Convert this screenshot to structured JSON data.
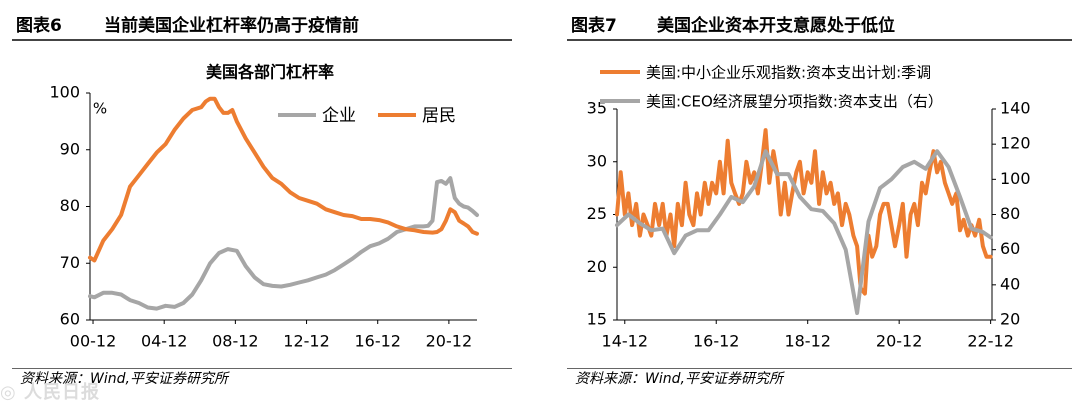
{
  "watermark": "◎ 人民日报",
  "chart_data": [
    {
      "type": "line",
      "figure_no": "图表6",
      "figure_title": "当前美国企业杠杆率仍高于疫情前",
      "title": "美国各部门杠杆率",
      "unit_label": "%",
      "source": "资料来源：Wind,平安证券研究所",
      "ylim": [
        60,
        100
      ],
      "yticks": [
        60,
        70,
        80,
        90,
        100
      ],
      "xlim": [
        2000.75,
        2022.5
      ],
      "xticks": [
        {
          "label": "00-12",
          "value": 2000.92
        },
        {
          "label": "04-12",
          "value": 2004.92
        },
        {
          "label": "08-12",
          "value": 2008.92
        },
        {
          "label": "12-12",
          "value": 2012.92
        },
        {
          "label": "16-12",
          "value": 2016.92
        },
        {
          "label": "20-12",
          "value": 2020.92
        }
      ],
      "legend_position": "top-right",
      "series": [
        {
          "name": "企业",
          "color": "#a6a6a6",
          "x": [
            2000.75,
            2001.0,
            2001.5,
            2002.0,
            2002.5,
            2003.0,
            2003.5,
            2004.0,
            2004.5,
            2005.0,
            2005.5,
            2006.0,
            2006.5,
            2007.0,
            2007.5,
            2008.0,
            2008.5,
            2009.0,
            2009.5,
            2010.0,
            2010.5,
            2011.0,
            2011.5,
            2012.0,
            2012.5,
            2013.0,
            2013.5,
            2014.0,
            2014.5,
            2015.0,
            2015.5,
            2016.0,
            2016.5,
            2017.0,
            2017.5,
            2018.0,
            2018.5,
            2019.0,
            2019.5,
            2019.75,
            2020.0,
            2020.25,
            2020.5,
            2020.75,
            2021.0,
            2021.25,
            2021.5,
            2021.75,
            2022.0,
            2022.25,
            2022.5
          ],
          "y": [
            64.2,
            64.0,
            64.8,
            64.8,
            64.5,
            63.5,
            63.0,
            62.2,
            62.0,
            62.5,
            62.3,
            63.0,
            64.5,
            67.0,
            70.0,
            71.8,
            72.5,
            72.2,
            69.5,
            67.5,
            66.3,
            66.0,
            65.9,
            66.2,
            66.6,
            67.0,
            67.5,
            68.0,
            68.8,
            69.8,
            70.8,
            72.0,
            73.0,
            73.5,
            74.3,
            75.5,
            76.0,
            76.5,
            76.5,
            76.6,
            77.5,
            84.3,
            84.5,
            84.0,
            85.0,
            81.5,
            80.5,
            80.0,
            79.8,
            79.2,
            78.5
          ]
        },
        {
          "name": "居民",
          "color": "#ed7d31",
          "x": [
            2000.75,
            2001.0,
            2001.5,
            2002.0,
            2002.5,
            2003.0,
            2003.5,
            2004.0,
            2004.5,
            2005.0,
            2005.5,
            2006.0,
            2006.5,
            2007.0,
            2007.25,
            2007.5,
            2007.75,
            2008.0,
            2008.25,
            2008.5,
            2008.75,
            2009.0,
            2009.5,
            2010.0,
            2010.5,
            2011.0,
            2011.5,
            2012.0,
            2012.5,
            2013.0,
            2013.5,
            2014.0,
            2014.5,
            2015.0,
            2015.5,
            2016.0,
            2016.5,
            2017.0,
            2017.5,
            2018.0,
            2018.5,
            2019.0,
            2019.5,
            2020.0,
            2020.25,
            2020.5,
            2020.75,
            2021.0,
            2021.25,
            2021.5,
            2021.75,
            2022.0,
            2022.25,
            2022.5
          ],
          "y": [
            71.0,
            70.5,
            74.0,
            76.0,
            78.5,
            83.5,
            85.5,
            87.5,
            89.5,
            91.0,
            93.5,
            95.5,
            97.0,
            97.5,
            98.5,
            99.0,
            99.0,
            97.5,
            96.5,
            96.5,
            97.0,
            95.0,
            92.0,
            89.5,
            87.0,
            85.0,
            84.0,
            82.5,
            81.5,
            81.0,
            80.5,
            79.5,
            79.0,
            78.5,
            78.3,
            77.8,
            77.8,
            77.6,
            77.2,
            76.5,
            76.0,
            75.8,
            75.5,
            75.4,
            75.5,
            76.0,
            77.5,
            79.5,
            79.0,
            77.5,
            77.0,
            76.5,
            75.5,
            75.2
          ]
        }
      ]
    },
    {
      "type": "line",
      "figure_no": "图表7",
      "figure_title": "美国企业资本开支意愿处于低位",
      "source": "资料来源：Wind,平安证券研究所",
      "ylim": [
        15,
        35
      ],
      "yticks": [
        15,
        20,
        25,
        30,
        35
      ],
      "ylim_right": [
        20,
        140
      ],
      "yticks_right": [
        20,
        40,
        60,
        80,
        100,
        120,
        140
      ],
      "xlim": [
        2014.75,
        2022.95
      ],
      "xticks": [
        {
          "label": "14-12",
          "value": 2014.92
        },
        {
          "label": "16-12",
          "value": 2016.92
        },
        {
          "label": "18-12",
          "value": 2018.92
        },
        {
          "label": "20-12",
          "value": 2020.92
        },
        {
          "label": "22-12",
          "value": 2022.92
        }
      ],
      "legend_position": "top",
      "series": [
        {
          "name": "美国:中小企业乐观指数:资本支出计划:季调",
          "axis": "left",
          "color": "#ed7d31",
          "x": [
            2014.75,
            2014.83,
            2014.92,
            2015.0,
            2015.08,
            2015.17,
            2015.25,
            2015.33,
            2015.42,
            2015.5,
            2015.58,
            2015.67,
            2015.75,
            2015.83,
            2015.92,
            2016.0,
            2016.08,
            2016.17,
            2016.25,
            2016.33,
            2016.42,
            2016.5,
            2016.58,
            2016.67,
            2016.75,
            2016.83,
            2016.92,
            2017.0,
            2017.08,
            2017.17,
            2017.25,
            2017.33,
            2017.42,
            2017.5,
            2017.58,
            2017.67,
            2017.75,
            2017.83,
            2017.92,
            2018.0,
            2018.08,
            2018.17,
            2018.25,
            2018.33,
            2018.42,
            2018.5,
            2018.58,
            2018.67,
            2018.75,
            2018.83,
            2018.92,
            2019.0,
            2019.08,
            2019.17,
            2019.25,
            2019.33,
            2019.42,
            2019.5,
            2019.58,
            2019.67,
            2019.75,
            2019.83,
            2019.92,
            2020.0,
            2020.08,
            2020.17,
            2020.25,
            2020.33,
            2020.42,
            2020.5,
            2020.58,
            2020.67,
            2020.75,
            2020.83,
            2020.92,
            2021.0,
            2021.08,
            2021.17,
            2021.25,
            2021.33,
            2021.42,
            2021.5,
            2021.58,
            2021.67,
            2021.75,
            2021.83,
            2021.92,
            2022.0,
            2022.08,
            2022.17,
            2022.25,
            2022.33,
            2022.42,
            2022.5,
            2022.58,
            2022.67,
            2022.75,
            2022.83,
            2022.92
          ],
          "y": [
            25.0,
            29.0,
            25.0,
            27.0,
            24.0,
            26.0,
            23.0,
            25.0,
            24.0,
            23.0,
            26.0,
            24.0,
            26.0,
            23.0,
            25.0,
            22.0,
            26.0,
            24.0,
            28.0,
            25.0,
            24.0,
            27.0,
            25.0,
            28.0,
            26.0,
            28.0,
            27.0,
            30.0,
            27.0,
            32.0,
            28.0,
            27.0,
            26.0,
            27.0,
            30.0,
            28.0,
            29.0,
            27.0,
            30.0,
            33.0,
            28.0,
            31.0,
            29.0,
            25.0,
            28.0,
            25.0,
            27.0,
            29.0,
            30.0,
            27.0,
            29.0,
            28.0,
            31.0,
            26.0,
            29.0,
            27.0,
            28.0,
            26.0,
            27.0,
            24.0,
            26.0,
            25.0,
            23.0,
            22.0,
            18.0,
            17.5,
            23.0,
            21.0,
            22.0,
            25.0,
            26.0,
            26.0,
            24.0,
            22.0,
            24.0,
            26.0,
            21.0,
            25.0,
            26.0,
            24.0,
            28.0,
            27.0,
            29.0,
            31.0,
            29.0,
            30.0,
            28.0,
            27.0,
            26.0,
            27.0,
            23.5,
            24.5,
            23.0,
            24.0,
            23.0,
            24.5,
            22.0,
            21.0,
            21.0
          ]
        },
        {
          "name": "美国:CEO经济展望分项指数:资本支出（右）",
          "axis": "right",
          "color": "#a6a6a6",
          "x": [
            2014.75,
            2015.0,
            2015.25,
            2015.5,
            2015.75,
            2016.0,
            2016.25,
            2016.5,
            2016.75,
            2017.0,
            2017.25,
            2017.5,
            2017.75,
            2018.0,
            2018.25,
            2018.5,
            2018.75,
            2019.0,
            2019.25,
            2019.5,
            2019.75,
            2020.0,
            2020.25,
            2020.5,
            2020.75,
            2021.0,
            2021.25,
            2021.5,
            2021.75,
            2022.0,
            2022.25,
            2022.5,
            2022.75,
            2022.92
          ],
          "y": [
            74,
            80,
            75,
            71,
            72,
            58,
            68,
            71,
            71,
            80,
            90,
            87,
            96,
            116,
            103,
            103,
            90,
            83,
            82,
            75,
            60,
            24,
            76,
            95,
            100,
            107,
            110,
            106,
            116,
            107,
            90,
            72,
            70,
            67
          ]
        }
      ]
    }
  ]
}
